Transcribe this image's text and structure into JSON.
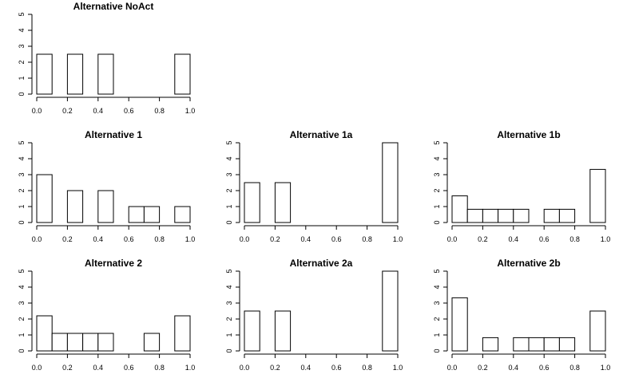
{
  "chart_data": [
    {
      "type": "bar",
      "title": "Alternative NoAct",
      "bin_edges": [
        0.0,
        0.1,
        0.2,
        0.3,
        0.4,
        0.5,
        0.6,
        0.7,
        0.8,
        0.9,
        1.0
      ],
      "values": [
        2.5,
        0,
        2.5,
        0,
        2.5,
        0,
        0,
        0,
        0,
        2.5
      ],
      "xlim": [
        0,
        1
      ],
      "ylim": [
        0,
        5
      ],
      "xticks": [
        "0.0",
        "0.2",
        "0.4",
        "0.6",
        "0.8",
        "1.0"
      ],
      "yticks": [
        "0",
        "1",
        "2",
        "3",
        "4",
        "5"
      ],
      "grid": false
    },
    {
      "type": "bar",
      "title": "Alternative 1",
      "bin_edges": [
        0.0,
        0.1,
        0.2,
        0.3,
        0.4,
        0.5,
        0.6,
        0.7,
        0.8,
        0.9,
        1.0
      ],
      "values": [
        3,
        0,
        2,
        0,
        2,
        0,
        1,
        1,
        0,
        1
      ],
      "xlim": [
        0,
        1
      ],
      "ylim": [
        0,
        5
      ],
      "xticks": [
        "0.0",
        "0.2",
        "0.4",
        "0.6",
        "0.8",
        "1.0"
      ],
      "yticks": [
        "0",
        "1",
        "2",
        "3",
        "4",
        "5"
      ],
      "grid": false
    },
    {
      "type": "bar",
      "title": "Alternative 1a",
      "bin_edges": [
        0.0,
        0.1,
        0.2,
        0.3,
        0.4,
        0.5,
        0.6,
        0.7,
        0.8,
        0.9,
        1.0
      ],
      "values": [
        2.5,
        0,
        2.5,
        0,
        0,
        0,
        0,
        0,
        0,
        5
      ],
      "xlim": [
        0,
        1
      ],
      "ylim": [
        0,
        5
      ],
      "xticks": [
        "0.0",
        "0.2",
        "0.4",
        "0.6",
        "0.8",
        "1.0"
      ],
      "yticks": [
        "0",
        "1",
        "2",
        "3",
        "4",
        "5"
      ],
      "grid": false
    },
    {
      "type": "bar",
      "title": "Alternative 1b",
      "bin_edges": [
        0.0,
        0.1,
        0.2,
        0.3,
        0.4,
        0.5,
        0.6,
        0.7,
        0.8,
        0.9,
        1.0
      ],
      "values": [
        1.67,
        0.83,
        0.83,
        0.83,
        0.83,
        0,
        0.83,
        0.83,
        0,
        3.33
      ],
      "xlim": [
        0,
        1
      ],
      "ylim": [
        0,
        5
      ],
      "xticks": [
        "0.0",
        "0.2",
        "0.4",
        "0.6",
        "0.8",
        "1.0"
      ],
      "yticks": [
        "0",
        "1",
        "2",
        "3",
        "4",
        "5"
      ],
      "grid": false
    },
    {
      "type": "bar",
      "title": "Alternative 2",
      "bin_edges": [
        0.0,
        0.1,
        0.2,
        0.3,
        0.4,
        0.5,
        0.6,
        0.7,
        0.8,
        0.9,
        1.0
      ],
      "values": [
        2.2,
        1.1,
        1.1,
        1.1,
        1.1,
        0,
        0,
        1.1,
        0,
        2.2
      ],
      "xlim": [
        0,
        1
      ],
      "ylim": [
        0,
        5
      ],
      "xticks": [
        "0.0",
        "0.2",
        "0.4",
        "0.6",
        "0.8",
        "1.0"
      ],
      "yticks": [
        "0",
        "1",
        "2",
        "3",
        "4",
        "5"
      ],
      "grid": false
    },
    {
      "type": "bar",
      "title": "Alternative 2a",
      "bin_edges": [
        0.0,
        0.1,
        0.2,
        0.3,
        0.4,
        0.5,
        0.6,
        0.7,
        0.8,
        0.9,
        1.0
      ],
      "values": [
        2.5,
        0,
        2.5,
        0,
        0,
        0,
        0,
        0,
        0,
        5
      ],
      "xlim": [
        0,
        1
      ],
      "ylim": [
        0,
        5
      ],
      "xticks": [
        "0.0",
        "0.2",
        "0.4",
        "0.6",
        "0.8",
        "1.0"
      ],
      "yticks": [
        "0",
        "1",
        "2",
        "3",
        "4",
        "5"
      ],
      "grid": false
    },
    {
      "type": "bar",
      "title": "Alternative 2b",
      "bin_edges": [
        0.0,
        0.1,
        0.2,
        0.3,
        0.4,
        0.5,
        0.6,
        0.7,
        0.8,
        0.9,
        1.0
      ],
      "values": [
        3.33,
        0,
        0.83,
        0,
        0.83,
        0.83,
        0.83,
        0.83,
        0,
        2.5
      ],
      "xlim": [
        0,
        1
      ],
      "ylim": [
        0,
        5
      ],
      "xticks": [
        "0.0",
        "0.2",
        "0.4",
        "0.6",
        "0.8",
        "1.0"
      ],
      "yticks": [
        "0",
        "1",
        "2",
        "3",
        "4",
        "5"
      ],
      "grid": false
    }
  ]
}
